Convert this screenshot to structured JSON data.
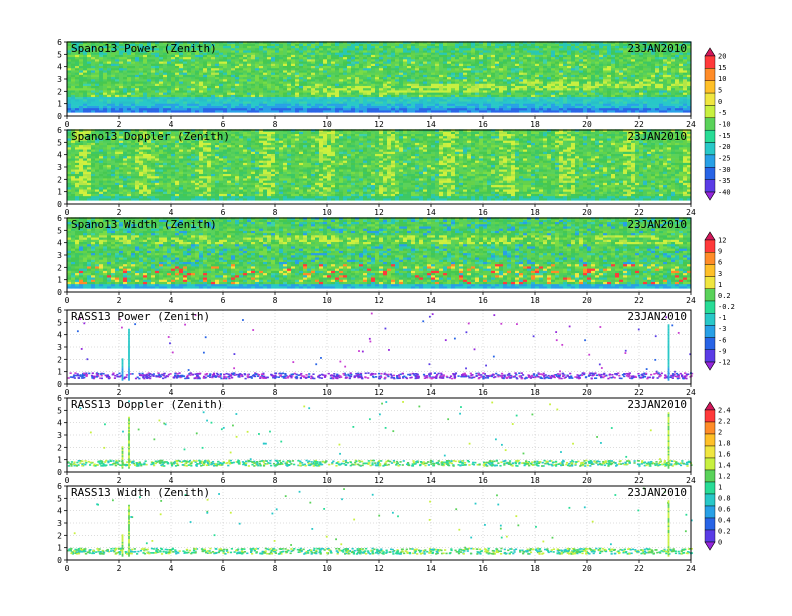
{
  "date_label": "23JAN2010",
  "x_ticks": [
    0,
    2,
    4,
    6,
    8,
    10,
    12,
    14,
    16,
    18,
    20,
    22,
    24
  ],
  "y_ticks": [
    0,
    1,
    2,
    3,
    4,
    5,
    6
  ],
  "panels": [
    {
      "id": "spano-power",
      "title": "Spano13 Power (Zenith)",
      "kind": "profiler",
      "field": "power"
    },
    {
      "id": "spano-doppler",
      "title": "Spano13 Doppler (Zenith)",
      "kind": "profiler",
      "field": "doppler"
    },
    {
      "id": "spano-width",
      "title": "Spano13 Width (Zenith)",
      "kind": "profiler",
      "field": "width"
    },
    {
      "id": "rass-power",
      "title": "RASS13 Power (Zenith)",
      "kind": "rass",
      "field": "power"
    },
    {
      "id": "rass-doppler",
      "title": "RASS13 Doppler (Zenith)",
      "kind": "rass",
      "field": "doppler"
    },
    {
      "id": "rass-width",
      "title": "RASS13 Width (Zenith)",
      "kind": "rass",
      "field": "width"
    }
  ],
  "colorbars": [
    {
      "id": "cb-power",
      "labels": [
        "20",
        "15",
        "10",
        "5",
        "0",
        "-5",
        "-10",
        "-15",
        "-20",
        "-25",
        "-30",
        "-35",
        "-40"
      ],
      "colors": [
        "#d4185a",
        "#ff3a3a",
        "#ff8c28",
        "#ffc028",
        "#f0e640",
        "#c8f040",
        "#5ad25a",
        "#28dc96",
        "#28c8c8",
        "#28a0e6",
        "#2864e6",
        "#5a3ce6",
        "#9628dc"
      ]
    },
    {
      "id": "cb-width",
      "labels": [
        "12",
        "9",
        "6",
        "3",
        "1",
        "0.2",
        "-0.2",
        "-1",
        "-3",
        "-6",
        "-9",
        "-12"
      ],
      "colors": [
        "#d4185a",
        "#ff3a3a",
        "#ff8c28",
        "#ffc028",
        "#f0e640",
        "#5ad25a",
        "#28dc96",
        "#28c8c8",
        "#28a0e6",
        "#2864e6",
        "#5a3ce6",
        "#9628dc"
      ]
    },
    {
      "id": "cb-rass",
      "labels": [
        "2.4",
        "2.2",
        "2",
        "1.8",
        "1.6",
        "1.4",
        "1.2",
        "1",
        "0.8",
        "0.6",
        "0.4",
        "0.2",
        "0"
      ],
      "colors": [
        "#d4185a",
        "#ff3a3a",
        "#ff8c28",
        "#ffc028",
        "#f0e640",
        "#c8f040",
        "#5ad25a",
        "#28dc96",
        "#28c8c8",
        "#28a0e6",
        "#2864e6",
        "#5a3ce6",
        "#9628dc"
      ]
    }
  ],
  "chart_data": [
    {
      "type": "heatmap",
      "title": "Spano13 Power (Zenith)",
      "xlim": [
        0,
        24
      ],
      "ylim": [
        0,
        6
      ],
      "annotation": "23JAN2010",
      "colorbar": [
        -40,
        20
      ]
    },
    {
      "type": "heatmap",
      "title": "Spano13 Doppler (Zenith)",
      "xlim": [
        0,
        24
      ],
      "ylim": [
        0,
        6
      ],
      "annotation": "23JAN2010",
      "colorbar": [
        -40,
        20
      ]
    },
    {
      "type": "heatmap",
      "title": "Spano13 Width (Zenith)",
      "xlim": [
        0,
        24
      ],
      "ylim": [
        0,
        6
      ],
      "annotation": "23JAN2010",
      "colorbar": [
        -12,
        12
      ]
    },
    {
      "type": "heatmap",
      "title": "RASS13 Power (Zenith)",
      "xlim": [
        0,
        24
      ],
      "ylim": [
        0,
        6
      ],
      "annotation": "23JAN2010",
      "colorbar": [
        -12,
        12
      ]
    },
    {
      "type": "heatmap",
      "title": "RASS13 Doppler (Zenith)",
      "xlim": [
        0,
        24
      ],
      "ylim": [
        0,
        6
      ],
      "annotation": "23JAN2010",
      "colorbar": [
        0,
        2.4
      ]
    },
    {
      "type": "heatmap",
      "title": "RASS13 Width (Zenith)",
      "xlim": [
        0,
        24
      ],
      "ylim": [
        0,
        6
      ],
      "annotation": "23JAN2010",
      "colorbar": [
        0,
        2.4
      ]
    }
  ]
}
